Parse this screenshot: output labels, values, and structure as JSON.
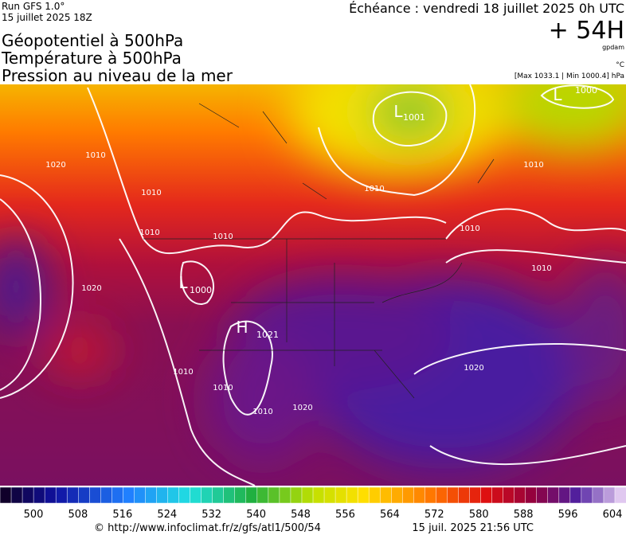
{
  "header": {
    "run": "Run GFS 1.0°",
    "run_date": "15 juillet 2025 18Z",
    "titles": [
      "Géopotentiel à 500hPa",
      "Température à 500hPa",
      "Pression au niveau de la mer"
    ],
    "echeance": "Échéance : vendredi 18 juillet 2025 0h UTC",
    "lead": "+ 54H",
    "unit_geo": "gpdam",
    "unit_temp": "°C",
    "extremes": "[Max 1033.1 | Min 1000.4] hPa"
  },
  "map": {
    "labels": [
      "L",
      "1001",
      "L",
      "1000",
      "L",
      "1000",
      "H",
      "1021",
      "1010",
      "1010",
      "1010",
      "1010",
      "1010",
      "1010",
      "1010",
      "1010",
      "1010",
      "1010",
      "1010",
      "1020",
      "1020",
      "1020",
      "1020"
    ]
  },
  "colorbar": {
    "ticks": [
      500,
      508,
      516,
      524,
      532,
      540,
      548,
      556,
      564,
      572,
      580,
      588,
      596,
      604
    ]
  },
  "footer": {
    "source": "© http://www.infoclimat.fr/z/gfs/atl1/500/54",
    "generated": "15 juil. 2025 21:56 UTC"
  }
}
